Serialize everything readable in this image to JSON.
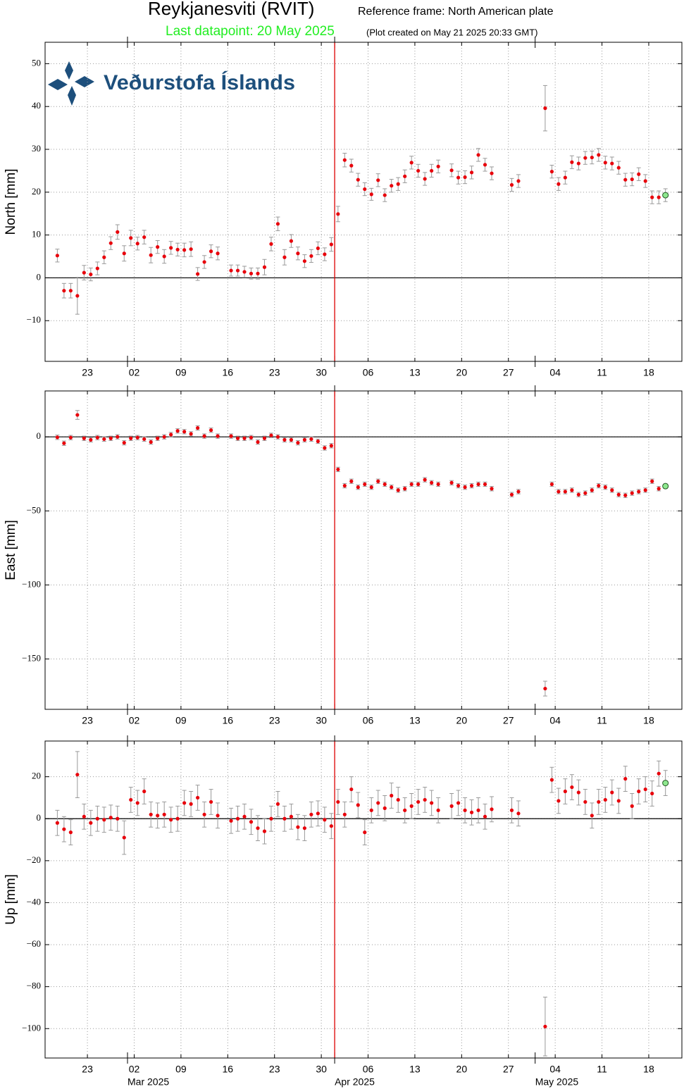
{
  "header": {
    "title": "Reykjanesviti (RVIT)",
    "frame": "Reference frame: North American plate",
    "last": "Last datapoint: 20 May 2025",
    "created": "(Plot created on May 21 2025 20:33 GMT)",
    "logo": "Veðurstofa Íslands"
  },
  "chart_data": [
    {
      "type": "scatter",
      "ylabel": "North [mm]",
      "color": "#e8000b",
      "last_color": "#8ee88e",
      "error_color": "#999999",
      "grid": true,
      "zero_line": true,
      "vline": {
        "x": "2025-04-01",
        "color": "#dd0000"
      },
      "xlim": [
        "2025-02-16T16:00Z",
        "2025-05-22T23:00Z"
      ],
      "xticks": [
        {
          "value": "2025-02-23",
          "label": "23"
        },
        {
          "value": "2025-03-02",
          "label": "02"
        },
        {
          "value": "2025-03-09",
          "label": "09"
        },
        {
          "value": "2025-03-16",
          "label": "16"
        },
        {
          "value": "2025-03-23",
          "label": "23"
        },
        {
          "value": "2025-03-30",
          "label": "30"
        },
        {
          "value": "2025-04-06",
          "label": "06"
        },
        {
          "value": "2025-04-13",
          "label": "13"
        },
        {
          "value": "2025-04-20",
          "label": "20"
        },
        {
          "value": "2025-04-27",
          "label": "27"
        },
        {
          "value": "2025-05-04",
          "label": "04"
        },
        {
          "value": "2025-05-11",
          "label": "11"
        },
        {
          "value": "2025-05-18",
          "label": "18"
        }
      ],
      "month_ticks": [
        "2025-03-01",
        "2025-04-01",
        "2025-05-01"
      ],
      "ylim": [
        -19.5,
        55
      ],
      "yticks": [
        {
          "value": -10,
          "label": "−10"
        },
        0,
        10,
        20,
        30,
        40,
        50
      ],
      "x": [
        "2025-02-18",
        "2025-02-19",
        "2025-02-20",
        "2025-02-21",
        "2025-02-22",
        "2025-02-23",
        "2025-02-24",
        "2025-02-25",
        "2025-02-26",
        "2025-02-27",
        "2025-02-28",
        "2025-03-01",
        "2025-03-02",
        "2025-03-03",
        "2025-03-04",
        "2025-03-05",
        "2025-03-06",
        "2025-03-07",
        "2025-03-08",
        "2025-03-09",
        "2025-03-10",
        "2025-03-11",
        "2025-03-12",
        "2025-03-13",
        "2025-03-14",
        "2025-03-16",
        "2025-03-17",
        "2025-03-18",
        "2025-03-19",
        "2025-03-20",
        "2025-03-21",
        "2025-03-22",
        "2025-03-23",
        "2025-03-24",
        "2025-03-25",
        "2025-03-26",
        "2025-03-27",
        "2025-03-28",
        "2025-03-29",
        "2025-03-30",
        "2025-03-31",
        "2025-04-01",
        "2025-04-02",
        "2025-04-03",
        "2025-04-04",
        "2025-04-05",
        "2025-04-06",
        "2025-04-07",
        "2025-04-08",
        "2025-04-09",
        "2025-04-10",
        "2025-04-11",
        "2025-04-12",
        "2025-04-13",
        "2025-04-14",
        "2025-04-15",
        "2025-04-16",
        "2025-04-18",
        "2025-04-19",
        "2025-04-20",
        "2025-04-21",
        "2025-04-22",
        "2025-04-23",
        "2025-04-24",
        "2025-04-27",
        "2025-04-28",
        "2025-05-02",
        "2025-05-03",
        "2025-05-04",
        "2025-05-05",
        "2025-05-06",
        "2025-05-07",
        "2025-05-08",
        "2025-05-09",
        "2025-05-10",
        "2025-05-11",
        "2025-05-12",
        "2025-05-13",
        "2025-05-14",
        "2025-05-15",
        "2025-05-16",
        "2025-05-17",
        "2025-05-18",
        "2025-05-19",
        "2025-05-20"
      ],
      "values": [
        5.2,
        -3,
        -3,
        -4.2,
        1.2,
        0.8,
        2.2,
        4.8,
        8.1,
        10.7,
        5.7,
        9.3,
        8,
        9.5,
        5.3,
        7.2,
        5,
        7,
        6.6,
        6.5,
        6.7,
        0.9,
        3.7,
        6.2,
        5.7,
        1.7,
        1.7,
        1.4,
        1,
        1,
        2.5,
        7.9,
        12.6,
        4.8,
        8.6,
        5.7,
        3.9,
        5.1,
        6.9,
        5.5,
        7.8,
        14.9,
        27.5,
        26.2,
        22.9,
        20.7,
        19.5,
        22.8,
        19.3,
        21.5,
        21.9,
        23.7,
        26.9,
        25,
        23.1,
        25,
        26,
        25.1,
        23.4,
        23.5,
        24.6,
        28.7,
        26.4,
        24.4,
        21.7,
        22.6,
        39.6,
        24.8,
        21.9,
        23.4,
        27,
        26.7,
        28,
        28.1,
        28.7,
        26.9,
        26.7,
        25.7,
        22.9,
        23,
        24.2,
        22.6,
        18.8,
        18.8,
        19.3
      ],
      "errors": [
        1.5,
        1.7,
        1.7,
        4.3,
        1.7,
        1.5,
        1.5,
        1.5,
        1.5,
        1.7,
        1.8,
        1.8,
        1.5,
        1.6,
        1.8,
        1.5,
        1.6,
        1.5,
        1.5,
        1.6,
        1.7,
        1.5,
        1.5,
        1.5,
        1.5,
        1.3,
        1.3,
        1.3,
        1.3,
        1.3,
        1.8,
        1.6,
        1.6,
        1.8,
        1.5,
        1.5,
        1.5,
        1.5,
        1.5,
        1.5,
        1.6,
        1.8,
        1.6,
        1.5,
        1.5,
        1.5,
        1.4,
        1.5,
        1.5,
        1.5,
        1.5,
        1.5,
        1.5,
        1.5,
        1.5,
        1.5,
        1.5,
        1.5,
        1.5,
        1.5,
        1.5,
        1.5,
        1.5,
        1.5,
        1.5,
        1.5,
        5.3,
        1.5,
        1.5,
        1.5,
        1.5,
        1.5,
        1.5,
        1.5,
        1.5,
        1.5,
        1.5,
        1.5,
        1.5,
        1.5,
        1.5,
        1.5,
        1.5,
        1.5,
        1.5
      ]
    },
    {
      "type": "scatter",
      "ylabel": "East [mm]",
      "color": "#e8000b",
      "last_color": "#8ee88e",
      "error_color": "#999999",
      "grid": true,
      "zero_line": true,
      "vline": {
        "x": "2025-04-01",
        "color": "#dd0000"
      },
      "xlim": [
        "2025-02-16T16:00Z",
        "2025-05-22T23:00Z"
      ],
      "xticks": [
        {
          "value": "2025-02-23",
          "label": "23"
        },
        {
          "value": "2025-03-02",
          "label": "02"
        },
        {
          "value": "2025-03-09",
          "label": "09"
        },
        {
          "value": "2025-03-16",
          "label": "16"
        },
        {
          "value": "2025-03-23",
          "label": "23"
        },
        {
          "value": "2025-03-30",
          "label": "30"
        },
        {
          "value": "2025-04-06",
          "label": "06"
        },
        {
          "value": "2025-04-13",
          "label": "13"
        },
        {
          "value": "2025-04-20",
          "label": "20"
        },
        {
          "value": "2025-04-27",
          "label": "27"
        },
        {
          "value": "2025-05-04",
          "label": "04"
        },
        {
          "value": "2025-05-11",
          "label": "11"
        },
        {
          "value": "2025-05-18",
          "label": "18"
        }
      ],
      "month_ticks": [
        "2025-03-01",
        "2025-04-01",
        "2025-05-01"
      ],
      "ylim": [
        -184,
        31
      ],
      "yticks": [
        {
          "value": -150,
          "label": "−150"
        },
        {
          "value": -100,
          "label": "−100"
        },
        {
          "value": -50,
          "label": "−50"
        },
        0
      ],
      "x": [
        "2025-02-18",
        "2025-02-19",
        "2025-02-20",
        "2025-02-21",
        "2025-02-22",
        "2025-02-23",
        "2025-02-24",
        "2025-02-25",
        "2025-02-26",
        "2025-02-27",
        "2025-02-28",
        "2025-03-01",
        "2025-03-02",
        "2025-03-03",
        "2025-03-04",
        "2025-03-05",
        "2025-03-06",
        "2025-03-07",
        "2025-03-08",
        "2025-03-09",
        "2025-03-10",
        "2025-03-11",
        "2025-03-12",
        "2025-03-13",
        "2025-03-14",
        "2025-03-16",
        "2025-03-17",
        "2025-03-18",
        "2025-03-19",
        "2025-03-20",
        "2025-03-21",
        "2025-03-22",
        "2025-03-23",
        "2025-03-24",
        "2025-03-25",
        "2025-03-26",
        "2025-03-27",
        "2025-03-28",
        "2025-03-29",
        "2025-03-30",
        "2025-03-31",
        "2025-04-01",
        "2025-04-02",
        "2025-04-03",
        "2025-04-04",
        "2025-04-05",
        "2025-04-06",
        "2025-04-07",
        "2025-04-08",
        "2025-04-09",
        "2025-04-10",
        "2025-04-11",
        "2025-04-12",
        "2025-04-13",
        "2025-04-14",
        "2025-04-15",
        "2025-04-16",
        "2025-04-18",
        "2025-04-19",
        "2025-04-20",
        "2025-04-21",
        "2025-04-22",
        "2025-04-23",
        "2025-04-24",
        "2025-04-27",
        "2025-04-28",
        "2025-05-02",
        "2025-05-03",
        "2025-05-04",
        "2025-05-05",
        "2025-05-06",
        "2025-05-07",
        "2025-05-08",
        "2025-05-09",
        "2025-05-10",
        "2025-05-11",
        "2025-05-12",
        "2025-05-13",
        "2025-05-14",
        "2025-05-15",
        "2025-05-16",
        "2025-05-17",
        "2025-05-18",
        "2025-05-19",
        "2025-05-20"
      ],
      "values": [
        -0.3,
        -4.3,
        -0.5,
        14.8,
        -1,
        -2,
        -0.5,
        -1.5,
        -1,
        0,
        -4,
        -1,
        -0.5,
        -1.5,
        -3.5,
        -1,
        0,
        1.5,
        4,
        3.5,
        2,
        6,
        0.5,
        4.5,
        0.5,
        0.5,
        -1,
        -1,
        -0.5,
        -3.5,
        -1,
        1,
        0,
        -2,
        -2,
        -4,
        -2,
        -1.5,
        -3,
        -7.5,
        -6,
        -22,
        -33,
        -30,
        -34,
        -32,
        -34,
        -30,
        -32,
        -34,
        -36,
        -35,
        -32,
        -32,
        -29,
        -31,
        -32,
        -31,
        -33,
        -34,
        -33,
        -32,
        -32,
        -35,
        -39,
        -37,
        -170,
        -32,
        -37,
        -37,
        -36,
        -39,
        -38,
        -36,
        -33,
        -34,
        -36,
        -39,
        -39.5,
        -38,
        -37,
        -36,
        -30,
        -35,
        -33.3
      ],
      "errors": [
        1.5,
        1.5,
        1.5,
        3,
        1.5,
        1.5,
        1.5,
        1.5,
        1.5,
        1.5,
        1.5,
        1.5,
        1.5,
        1.5,
        1.5,
        1.5,
        1.5,
        1.5,
        1.5,
        1.5,
        1.5,
        1.5,
        1.5,
        1.5,
        1.5,
        1.5,
        1.5,
        1.5,
        1.5,
        1.5,
        1.5,
        1.5,
        1.5,
        1.5,
        1.5,
        1.5,
        1.5,
        1.5,
        1.5,
        1.5,
        1.5,
        1.5,
        1.5,
        1.5,
        1.5,
        1.5,
        1.5,
        1.5,
        1.5,
        1.5,
        1.5,
        1.5,
        1.5,
        1.5,
        1.5,
        1.5,
        1.5,
        1.5,
        1.5,
        1.5,
        1.5,
        1.5,
        1.5,
        1.5,
        1.5,
        1.5,
        5,
        1.5,
        1.5,
        1.5,
        1.5,
        1.5,
        1.5,
        1.5,
        1.5,
        1.5,
        1.5,
        1.5,
        1.5,
        1.5,
        1.5,
        1.5,
        1.5,
        1.5,
        1.5
      ]
    },
    {
      "type": "scatter",
      "ylabel": "Up [mm]",
      "color": "#e8000b",
      "last_color": "#8ee88e",
      "error_color": "#999999",
      "grid": true,
      "zero_line": true,
      "vline": {
        "x": "2025-04-01",
        "color": "#dd0000"
      },
      "xlim": [
        "2025-02-16T16:00Z",
        "2025-05-22T23:00Z"
      ],
      "xticks": [
        {
          "value": "2025-02-23",
          "label": "23"
        },
        {
          "value": "2025-03-02",
          "label": "02"
        },
        {
          "value": "2025-03-09",
          "label": "09"
        },
        {
          "value": "2025-03-16",
          "label": "16"
        },
        {
          "value": "2025-03-23",
          "label": "23"
        },
        {
          "value": "2025-03-30",
          "label": "30"
        },
        {
          "value": "2025-04-06",
          "label": "06"
        },
        {
          "value": "2025-04-13",
          "label": "13"
        },
        {
          "value": "2025-04-20",
          "label": "20"
        },
        {
          "value": "2025-04-27",
          "label": "27"
        },
        {
          "value": "2025-05-04",
          "label": "04"
        },
        {
          "value": "2025-05-11",
          "label": "11"
        },
        {
          "value": "2025-05-18",
          "label": "18"
        }
      ],
      "month_ticks": [
        {
          "value": "2025-03-01",
          "label": "Mar 2025"
        },
        {
          "value": "2025-04-01",
          "label": "Apr 2025"
        },
        {
          "value": "2025-05-01",
          "label": "May 2025"
        }
      ],
      "ylim": [
        -114,
        37
      ],
      "yticks": [
        {
          "value": -100,
          "label": "−100"
        },
        {
          "value": -80,
          "label": "−80"
        },
        {
          "value": -60,
          "label": "−60"
        },
        {
          "value": -40,
          "label": "−40"
        },
        {
          "value": -20,
          "label": "−20"
        },
        0,
        20
      ],
      "x": [
        "2025-02-18",
        "2025-02-19",
        "2025-02-20",
        "2025-02-21",
        "2025-02-22",
        "2025-02-23",
        "2025-02-24",
        "2025-02-25",
        "2025-02-26",
        "2025-02-27",
        "2025-02-28",
        "2025-03-01",
        "2025-03-02",
        "2025-03-03",
        "2025-03-04",
        "2025-03-05",
        "2025-03-06",
        "2025-03-07",
        "2025-03-08",
        "2025-03-09",
        "2025-03-10",
        "2025-03-11",
        "2025-03-12",
        "2025-03-13",
        "2025-03-14",
        "2025-03-16",
        "2025-03-17",
        "2025-03-18",
        "2025-03-19",
        "2025-03-20",
        "2025-03-21",
        "2025-03-22",
        "2025-03-23",
        "2025-03-24",
        "2025-03-25",
        "2025-03-26",
        "2025-03-27",
        "2025-03-28",
        "2025-03-29",
        "2025-03-30",
        "2025-03-31",
        "2025-04-01",
        "2025-04-02",
        "2025-04-03",
        "2025-04-04",
        "2025-04-05",
        "2025-04-06",
        "2025-04-07",
        "2025-04-08",
        "2025-04-09",
        "2025-04-10",
        "2025-04-11",
        "2025-04-12",
        "2025-04-13",
        "2025-04-14",
        "2025-04-15",
        "2025-04-16",
        "2025-04-18",
        "2025-04-19",
        "2025-04-20",
        "2025-04-21",
        "2025-04-22",
        "2025-04-23",
        "2025-04-24",
        "2025-04-27",
        "2025-04-28",
        "2025-05-02",
        "2025-05-03",
        "2025-05-04",
        "2025-05-05",
        "2025-05-06",
        "2025-05-07",
        "2025-05-08",
        "2025-05-09",
        "2025-05-10",
        "2025-05-11",
        "2025-05-12",
        "2025-05-13",
        "2025-05-14",
        "2025-05-15",
        "2025-05-16",
        "2025-05-17",
        "2025-05-18",
        "2025-05-19",
        "2025-05-20"
      ],
      "values": [
        -2,
        -5,
        -6.5,
        21,
        1,
        -2,
        0,
        -0.5,
        0.5,
        0,
        -9,
        9,
        7.5,
        13,
        2,
        1.5,
        2,
        -0.5,
        0,
        7.5,
        7,
        10,
        2,
        8,
        1.5,
        -1,
        0,
        1,
        -1.5,
        -4.5,
        -6,
        0,
        7,
        0,
        1,
        -4,
        -4.5,
        2,
        2.5,
        -0.5,
        -3.5,
        8,
        2,
        14,
        6.5,
        -6.5,
        4,
        7.5,
        5,
        11,
        9,
        4,
        6,
        8,
        9,
        7.5,
        4,
        6,
        7.5,
        4,
        3,
        4,
        1,
        4.5,
        4,
        2.5,
        -99,
        18.5,
        8.5,
        13,
        15,
        12.5,
        8,
        1.5,
        8,
        9,
        12.5,
        8.5,
        19,
        6,
        13,
        14,
        12,
        21.5,
        17
      ],
      "errors": [
        6,
        6,
        6,
        11,
        6,
        6,
        6,
        6,
        6,
        6,
        8,
        6,
        6,
        6,
        6,
        6,
        6,
        6,
        6,
        6,
        6,
        6,
        6,
        6,
        6,
        6,
        6,
        6,
        6,
        6,
        6,
        6,
        6,
        6,
        6,
        6,
        6,
        6,
        6,
        6,
        6,
        6,
        6,
        6,
        6,
        6,
        6,
        6,
        6,
        6,
        6,
        6,
        6,
        6,
        6,
        6,
        6,
        6,
        6,
        6,
        6,
        6,
        6,
        6,
        6,
        6,
        14,
        6,
        6,
        6,
        6,
        6,
        6,
        6,
        6,
        6,
        6,
        6,
        6,
        6,
        6,
        6,
        6,
        6,
        6
      ]
    }
  ]
}
